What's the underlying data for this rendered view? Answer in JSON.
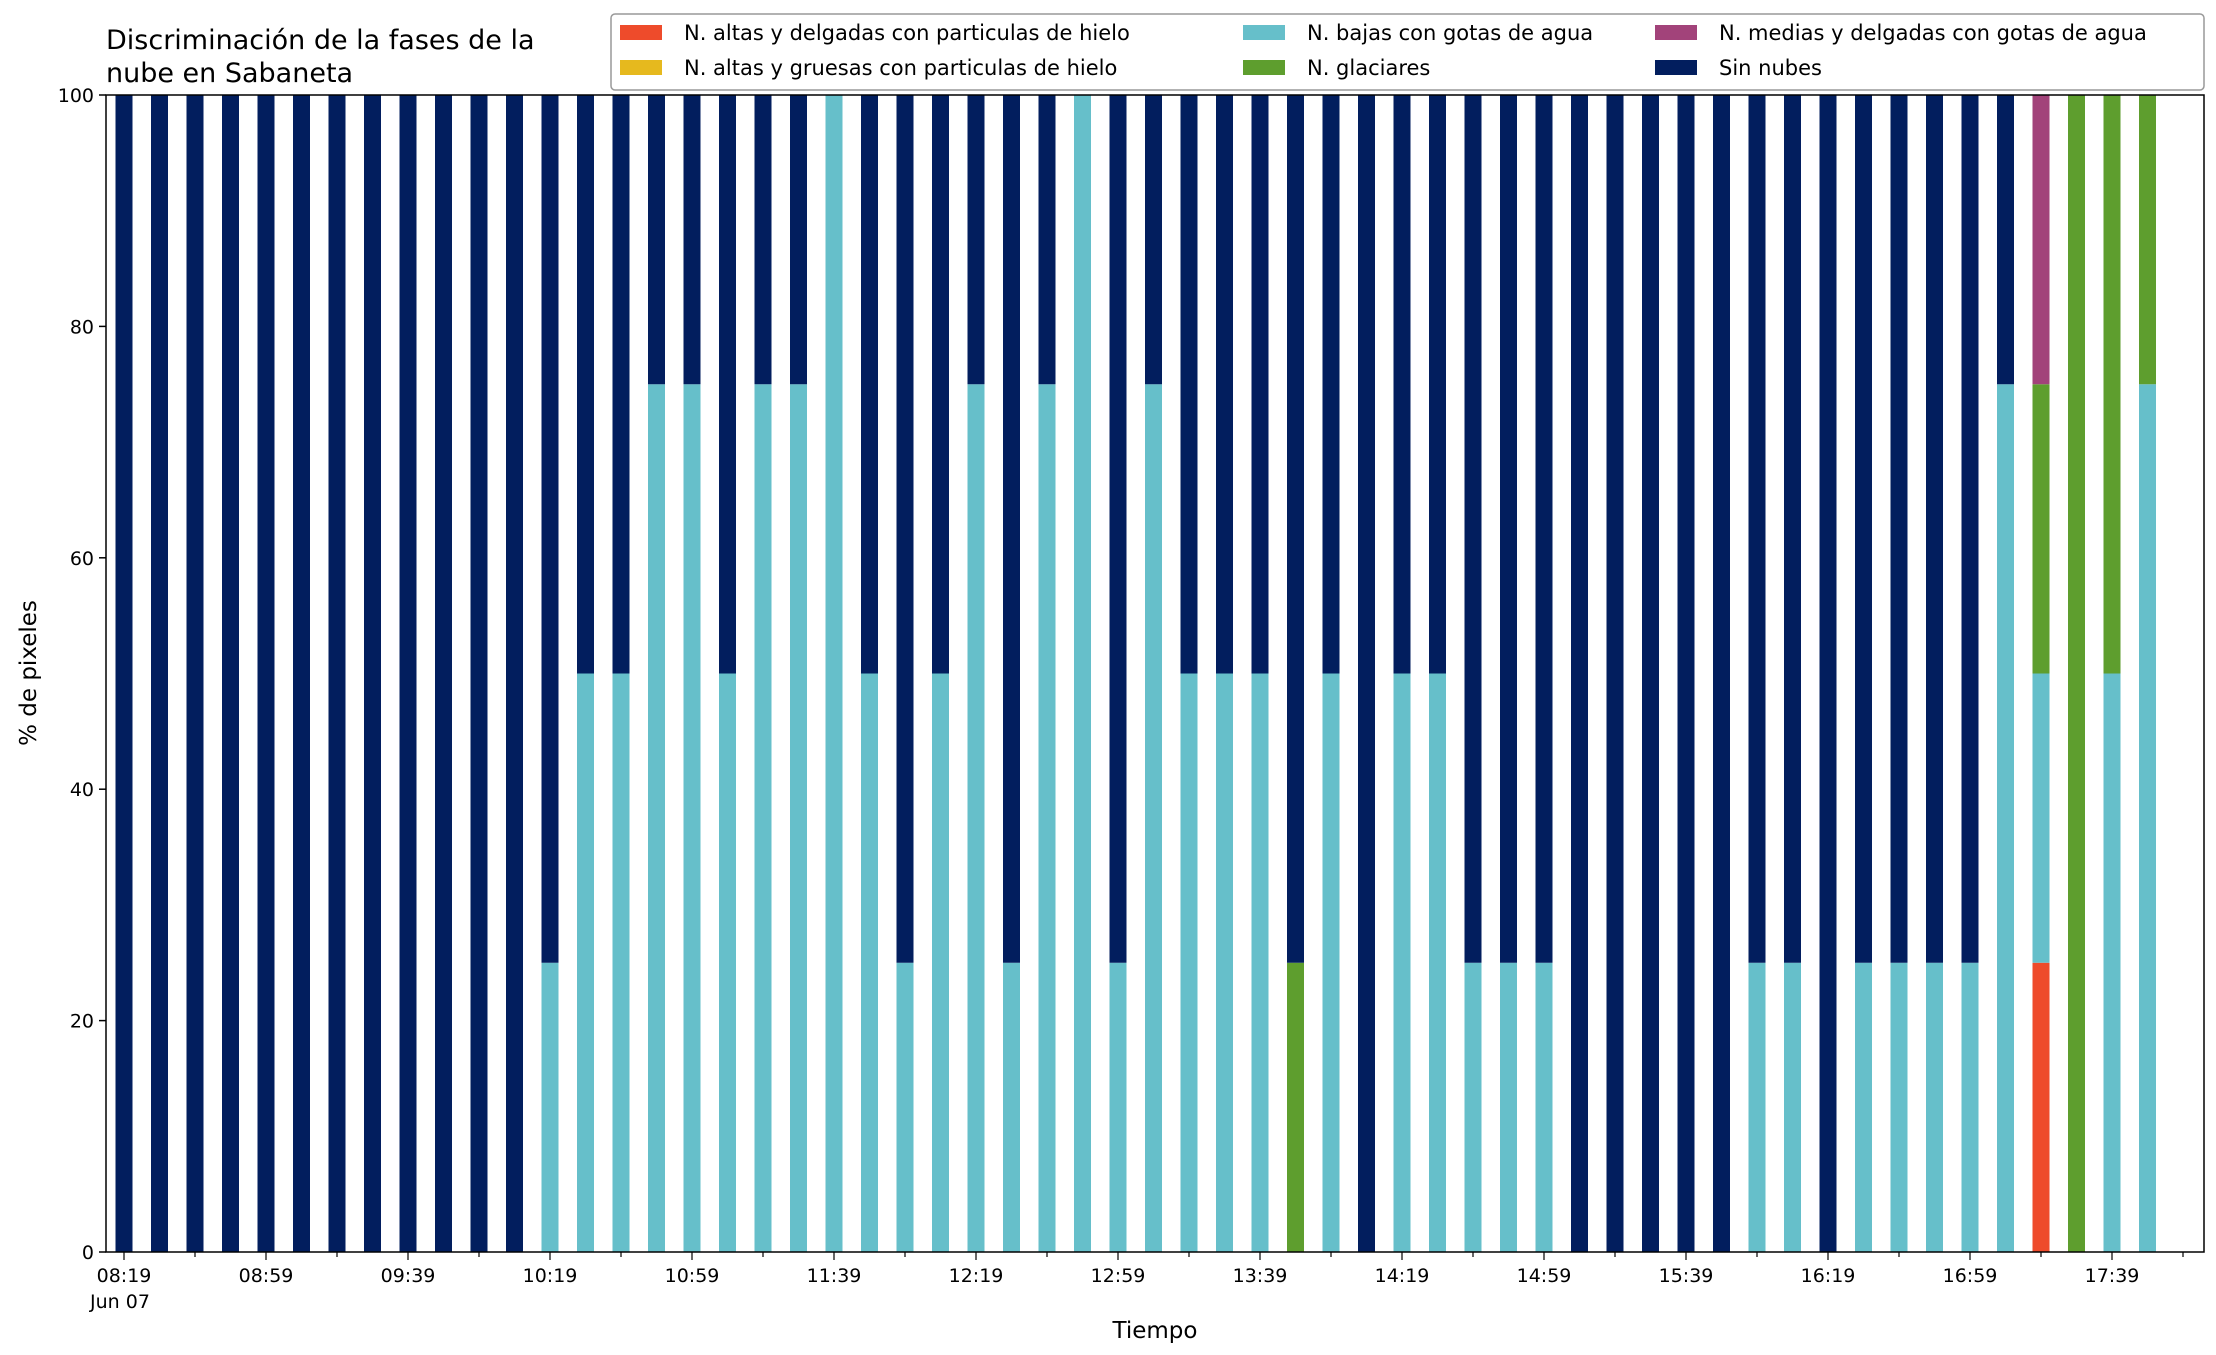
{
  "chart_data": {
    "type": "bar",
    "stacked": true,
    "title": "Discriminación de la fases de la nube en Sabaneta",
    "title_lines": [
      "Discriminación de la fases de la",
      "nube en Sabaneta"
    ],
    "xlabel": "Tiempo",
    "ylabel": "% de pixeles",
    "ylim": [
      0,
      100
    ],
    "yticks": [
      0,
      20,
      40,
      60,
      80,
      100
    ],
    "grid": false,
    "legend_position": "top-right",
    "x_start": "08:19",
    "x_step_minutes": 10,
    "x_tick_labels": [
      "08:19",
      "08:59",
      "09:39",
      "10:19",
      "10:59",
      "11:39",
      "12:19",
      "12:59",
      "13:39",
      "14:19",
      "14:59",
      "15:39",
      "16:19",
      "16:59",
      "17:39"
    ],
    "x_date_label": "Jun 07",
    "categories": [
      "08:19",
      "08:29",
      "08:39",
      "08:49",
      "08:59",
      "09:09",
      "09:19",
      "09:29",
      "09:39",
      "09:49",
      "09:59",
      "10:09",
      "10:19",
      "10:29",
      "10:39",
      "10:49",
      "10:59",
      "11:09",
      "11:19",
      "11:29",
      "11:39",
      "11:49",
      "11:59",
      "12:09",
      "12:19",
      "12:29",
      "12:39",
      "12:49",
      "12:59",
      "13:09",
      "13:19",
      "13:29",
      "13:39",
      "13:49",
      "13:59",
      "14:09",
      "14:19",
      "14:29",
      "14:39",
      "14:49",
      "14:59",
      "15:09",
      "15:19",
      "15:29",
      "15:39",
      "15:49",
      "15:59",
      "16:09",
      "16:19",
      "16:29",
      "16:39",
      "16:49",
      "16:59",
      "17:09",
      "17:19",
      "17:29",
      "17:39",
      "17:49"
    ],
    "series": [
      {
        "name": "N. altas y delgadas con particulas de hielo",
        "color": "#EE4B2B",
        "values": [
          0,
          0,
          0,
          0,
          0,
          0,
          0,
          0,
          0,
          0,
          0,
          0,
          0,
          0,
          0,
          0,
          0,
          0,
          0,
          0,
          0,
          0,
          0,
          0,
          0,
          0,
          0,
          0,
          0,
          0,
          0,
          0,
          0,
          0,
          0,
          0,
          0,
          0,
          0,
          0,
          0,
          0,
          0,
          0,
          0,
          0,
          0,
          0,
          0,
          0,
          0,
          0,
          0,
          0,
          25,
          0,
          0,
          0
        ]
      },
      {
        "name": "N. altas y gruesas con particulas de hielo",
        "color": "#E6B91E",
        "values": [
          0,
          0,
          0,
          0,
          0,
          0,
          0,
          0,
          0,
          0,
          0,
          0,
          0,
          0,
          0,
          0,
          0,
          0,
          0,
          0,
          0,
          0,
          0,
          0,
          0,
          0,
          0,
          0,
          0,
          0,
          0,
          0,
          0,
          0,
          0,
          0,
          0,
          0,
          0,
          0,
          0,
          0,
          0,
          0,
          0,
          0,
          0,
          0,
          0,
          0,
          0,
          0,
          0,
          0,
          0,
          0,
          0,
          0
        ]
      },
      {
        "name": "N. bajas con gotas de agua",
        "color": "#66BFCA",
        "values": [
          0,
          0,
          0,
          0,
          0,
          0,
          0,
          0,
          0,
          0,
          0,
          0,
          25,
          50,
          50,
          75,
          75,
          50,
          75,
          75,
          100,
          50,
          25,
          50,
          75,
          25,
          75,
          100,
          25,
          75,
          50,
          50,
          50,
          0,
          50,
          0,
          50,
          50,
          25,
          25,
          25,
          0,
          0,
          0,
          0,
          0,
          25,
          25,
          0,
          25,
          25,
          25,
          25,
          75,
          25,
          0,
          50,
          75
        ]
      },
      {
        "name": "N. glaciares",
        "color": "#5E9E2E",
        "values": [
          0,
          0,
          0,
          0,
          0,
          0,
          0,
          0,
          0,
          0,
          0,
          0,
          0,
          0,
          0,
          0,
          0,
          0,
          0,
          0,
          0,
          0,
          0,
          0,
          0,
          0,
          0,
          0,
          0,
          0,
          0,
          0,
          0,
          25,
          0,
          0,
          0,
          0,
          0,
          0,
          0,
          0,
          0,
          0,
          0,
          0,
          0,
          0,
          0,
          0,
          0,
          0,
          0,
          0,
          25,
          100,
          50,
          25
        ]
      },
      {
        "name": "N. medias y delgadas con gotas de agua",
        "color": "#A2437A",
        "values": [
          0,
          0,
          0,
          0,
          0,
          0,
          0,
          0,
          0,
          0,
          0,
          0,
          0,
          0,
          0,
          0,
          0,
          0,
          0,
          0,
          0,
          0,
          0,
          0,
          0,
          0,
          0,
          0,
          0,
          0,
          0,
          0,
          0,
          0,
          0,
          0,
          0,
          0,
          0,
          0,
          0,
          0,
          0,
          0,
          0,
          0,
          0,
          0,
          0,
          0,
          0,
          0,
          0,
          0,
          25,
          0,
          0,
          0
        ]
      },
      {
        "name": "Sin nubes",
        "color": "#021E5E",
        "values": [
          100,
          100,
          100,
          100,
          100,
          100,
          100,
          100,
          100,
          100,
          100,
          100,
          75,
          50,
          50,
          25,
          25,
          50,
          25,
          25,
          0,
          50,
          75,
          50,
          25,
          75,
          25,
          0,
          75,
          25,
          50,
          50,
          50,
          75,
          50,
          100,
          50,
          50,
          75,
          75,
          75,
          100,
          100,
          100,
          100,
          100,
          75,
          75,
          100,
          75,
          75,
          75,
          75,
          25,
          0,
          0,
          0,
          0
        ]
      }
    ],
    "legend_order": [
      0,
      1,
      2,
      3,
      4,
      5
    ]
  }
}
